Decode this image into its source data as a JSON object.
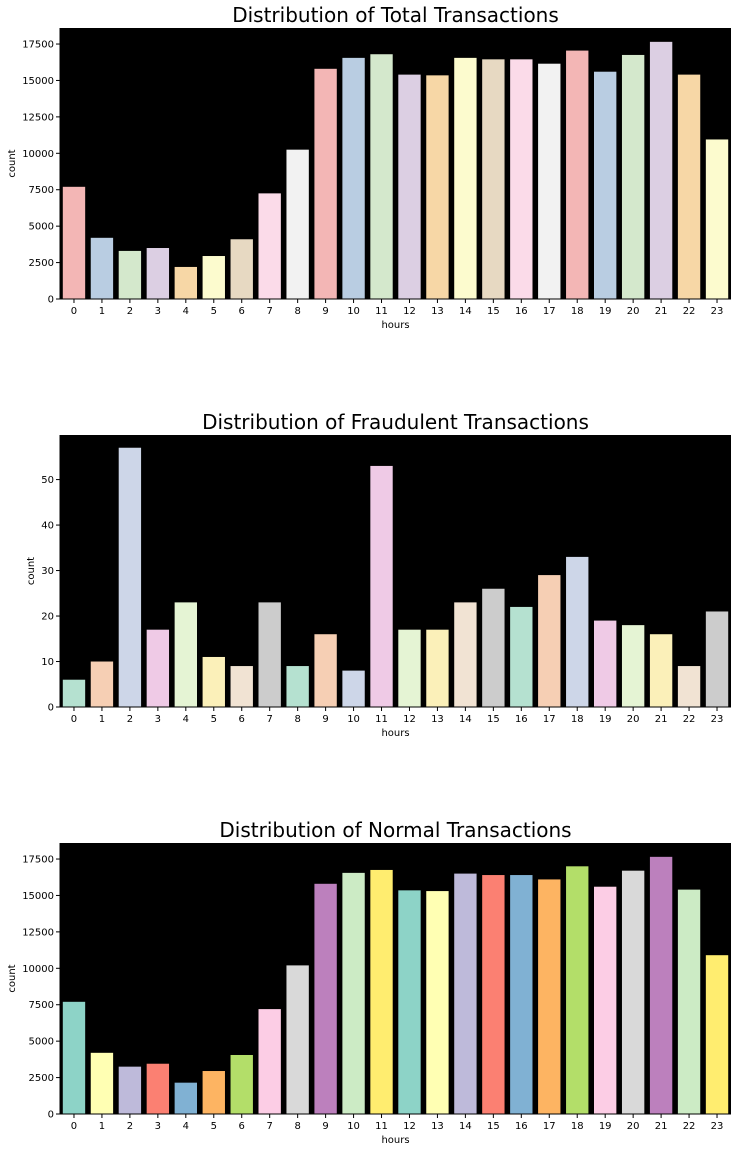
{
  "chart_data": [
    {
      "type": "bar",
      "title": "Distribution of Total Transactions",
      "xlabel": "hours",
      "ylabel": "count",
      "categories": [
        "0",
        "1",
        "2",
        "3",
        "4",
        "5",
        "6",
        "7",
        "8",
        "9",
        "10",
        "11",
        "12",
        "13",
        "14",
        "15",
        "16",
        "17",
        "18",
        "19",
        "20",
        "21",
        "22",
        "23"
      ],
      "values": [
        7700,
        4200,
        3300,
        3500,
        2200,
        2950,
        4100,
        7250,
        10250,
        15800,
        16550,
        16800,
        15400,
        15350,
        16550,
        16450,
        16450,
        16150,
        17050,
        15600,
        16750,
        17650,
        15400,
        10950
      ],
      "ylim": [
        0,
        18600
      ],
      "yticks": [
        0,
        2500,
        5000,
        7500,
        10000,
        12500,
        15000,
        17500
      ],
      "background": "#000000",
      "grid": false,
      "colors": [
        "#f3b6b5",
        "#b9cde2",
        "#d4e8cc",
        "#dccfe3",
        "#f7d7a6",
        "#fcfbce",
        "#e7d9c2",
        "#fbdbe9",
        "#f2f2f2",
        "#f3b6b5",
        "#b9cde2",
        "#d4e8cc",
        "#dccfe3",
        "#f7d7a6",
        "#fcfbce",
        "#e7d9c2",
        "#fbdbe9",
        "#f2f2f2",
        "#f3b6b5",
        "#b9cde2",
        "#d4e8cc",
        "#dccfe3",
        "#f7d7a6",
        "#fcfbce"
      ]
    },
    {
      "type": "bar",
      "title": "Distribution of Fraudulent Transactions",
      "xlabel": "hours",
      "ylabel": "count",
      "categories": [
        "0",
        "1",
        "2",
        "3",
        "4",
        "5",
        "6",
        "7",
        "8",
        "9",
        "10",
        "11",
        "12",
        "13",
        "14",
        "15",
        "16",
        "17",
        "18",
        "19",
        "20",
        "21",
        "22",
        "23"
      ],
      "values": [
        6,
        10,
        57,
        17,
        23,
        11,
        9,
        23,
        9,
        16,
        8,
        53,
        17,
        17,
        23,
        26,
        22,
        29,
        33,
        19,
        18,
        16,
        9,
        21
      ],
      "ylim": [
        0,
        59.8
      ],
      "yticks": [
        0,
        10,
        20,
        30,
        40,
        50
      ],
      "background": "#000000",
      "grid": false,
      "colors": [
        "#b5e1d0",
        "#f6cfb4",
        "#cdd6e8",
        "#efcae6",
        "#e5f4d4",
        "#fbf0b9",
        "#f1e3d3",
        "#cccccc",
        "#b5e1d0",
        "#f6cfb4",
        "#cdd6e8",
        "#efcae6",
        "#e5f4d4",
        "#fbf0b9",
        "#f1e3d3",
        "#cccccc",
        "#b5e1d0",
        "#f6cfb4",
        "#cdd6e8",
        "#efcae6",
        "#e5f4d4",
        "#fbf0b9",
        "#f1e3d3",
        "#cccccc"
      ]
    },
    {
      "type": "bar",
      "title": "Distribution of Normal Transactions",
      "xlabel": "hours",
      "ylabel": "count",
      "categories": [
        "0",
        "1",
        "2",
        "3",
        "4",
        "5",
        "6",
        "7",
        "8",
        "9",
        "10",
        "11",
        "12",
        "13",
        "14",
        "15",
        "16",
        "17",
        "18",
        "19",
        "20",
        "21",
        "22",
        "23"
      ],
      "values": [
        7700,
        4200,
        3250,
        3450,
        2150,
        2950,
        4050,
        7200,
        10200,
        15800,
        16550,
        16750,
        15350,
        15300,
        16500,
        16400,
        16400,
        16100,
        17000,
        15600,
        16700,
        17650,
        15400,
        10900
      ],
      "ylim": [
        0,
        18600
      ],
      "yticks": [
        0,
        2500,
        5000,
        7500,
        10000,
        12500,
        15000,
        17500
      ],
      "background": "#000000",
      "grid": false,
      "colors": [
        "#8dd3c7",
        "#ffffb3",
        "#bebada",
        "#fb8072",
        "#80b1d3",
        "#fdb462",
        "#b3de69",
        "#fccde5",
        "#d9d9d9",
        "#bc80bd",
        "#ccebc5",
        "#ffed6f",
        "#8dd3c7",
        "#ffffb3",
        "#bebada",
        "#fb8072",
        "#80b1d3",
        "#fdb462",
        "#b3de69",
        "#fccde5",
        "#d9d9d9",
        "#bc80bd",
        "#ccebc5",
        "#ffed6f"
      ]
    }
  ]
}
